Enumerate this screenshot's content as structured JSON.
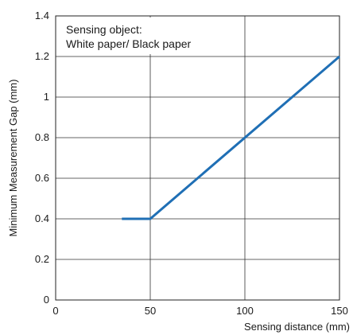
{
  "chart_data": {
    "type": "line",
    "xlabel": "Sensing distance (mm)",
    "ylabel": "Minimum Measurement Gap (mm)",
    "xlim": [
      0,
      150
    ],
    "ylim": [
      0,
      1.4
    ],
    "xticks": [
      "0",
      "50",
      "100",
      "150"
    ],
    "yticks": [
      "0",
      "0.2",
      "0.4",
      "0.6",
      "0.8",
      "1",
      "1.2",
      "1.4"
    ],
    "grid": true,
    "annotation": [
      "Sensing object:",
      "White paper/ Black paper"
    ],
    "series": [
      {
        "color": "#1f6fb5",
        "x": [
          35,
          50,
          150
        ],
        "y": [
          0.4,
          0.4,
          1.2
        ]
      }
    ]
  }
}
